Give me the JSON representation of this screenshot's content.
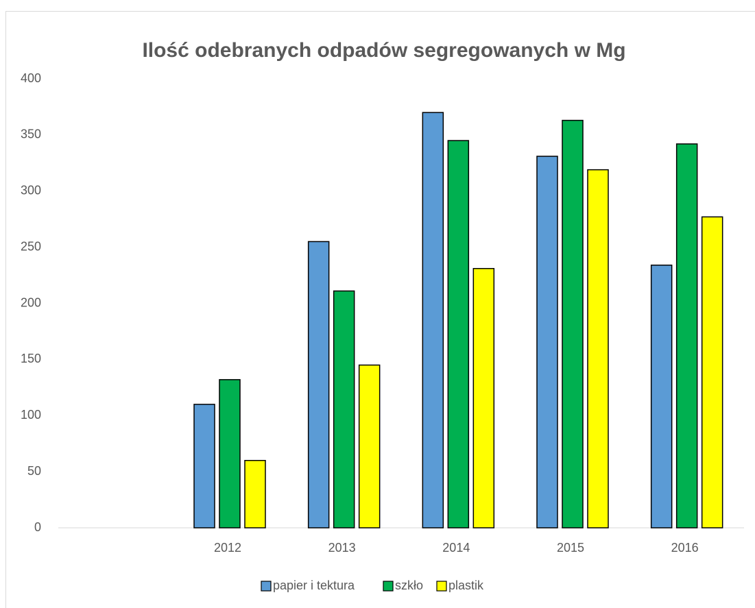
{
  "chart_data": {
    "type": "bar",
    "title": "Ilość odebranych odpadów segregowanych w Mg",
    "categories": [
      null,
      "2012",
      "2013",
      "2014",
      "2015",
      "2016"
    ],
    "series": [
      {
        "name": "papier i tektura",
        "color": "#5b9bd5",
        "values": [
          null,
          110,
          255,
          370,
          331,
          234
        ]
      },
      {
        "name": "szkło",
        "color": "#00b050",
        "values": [
          null,
          132,
          211,
          345,
          363,
          342
        ]
      },
      {
        "name": "plastik",
        "color": "#ffff00",
        "values": [
          null,
          60,
          145,
          231,
          319,
          277
        ]
      }
    ],
    "ylim": [
      0,
      400
    ],
    "yticks": [
      0,
      50,
      100,
      150,
      200,
      250,
      300,
      350,
      400
    ],
    "grid": false,
    "legend": "bottom"
  }
}
